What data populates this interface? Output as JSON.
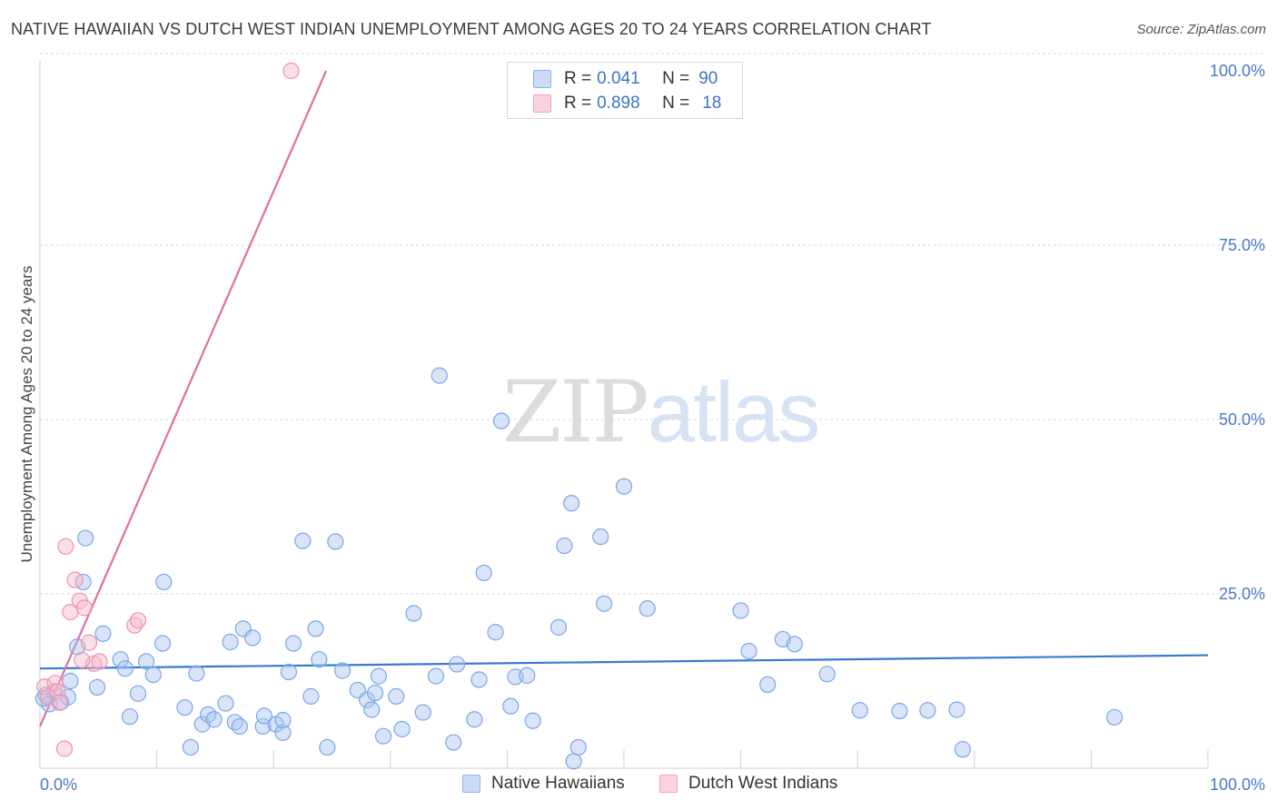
{
  "header": {
    "title": "NATIVE HAWAIIAN VS DUTCH WEST INDIAN UNEMPLOYMENT AMONG AGES 20 TO 24 YEARS CORRELATION CHART",
    "source": "Source: ZipAtlas.com"
  },
  "watermark": {
    "zip": "ZIP",
    "atlas": "atlas"
  },
  "legend": {
    "rows": [
      {
        "r_label": "R =",
        "r_value": "0.041",
        "n_label": "N =",
        "n_value": "90",
        "color": "#a9c6f2"
      },
      {
        "r_label": "R =",
        "r_value": "0.898",
        "n_label": "N =",
        "n_value": "18",
        "color": "#f7b8cc"
      }
    ]
  },
  "bottom_legend": {
    "items": [
      {
        "label": "Native Hawaiians",
        "color": "#a9c6f2"
      },
      {
        "label": "Dutch West Indians",
        "color": "#f7b8cc"
      }
    ]
  },
  "chart_data": {
    "type": "scatter",
    "title": "NATIVE HAWAIIAN VS DUTCH WEST INDIAN UNEMPLOYMENT AMONG AGES 20 TO 24 YEARS CORRELATION CHART",
    "xlabel": "",
    "ylabel": "Unemployment Among Ages 20 to 24 years",
    "xlim": [
      0,
      100
    ],
    "ylim": [
      0,
      100
    ],
    "x_tick_labels": [
      "0.0%",
      "100.0%"
    ],
    "y_ticks": [
      25,
      50,
      75,
      100
    ],
    "y_tick_labels": [
      "25.0%",
      "50.0%",
      "75.0%",
      "100.0%"
    ],
    "grid": true,
    "series": [
      {
        "name": "Native Hawaiians",
        "color": "#7aa6e6",
        "fill": "#a9c6f2",
        "r": 0.041,
        "n": 90,
        "trend": {
          "x": [
            0,
            100
          ],
          "y": [
            14.3,
            16.2
          ],
          "color": "#3a78d4"
        },
        "points": [
          [
            0.5,
            10.5
          ],
          [
            0.8,
            9.2
          ],
          [
            1.2,
            11.0
          ],
          [
            1.8,
            9.5
          ],
          [
            2.4,
            10.2
          ],
          [
            2.6,
            12.5
          ],
          [
            3.2,
            17.4
          ],
          [
            3.9,
            33.0
          ],
          [
            3.7,
            26.7
          ],
          [
            5.4,
            19.3
          ],
          [
            4.9,
            11.6
          ],
          [
            7.7,
            7.4
          ],
          [
            6.9,
            15.6
          ],
          [
            7.3,
            14.3
          ],
          [
            8.4,
            10.7
          ],
          [
            9.1,
            15.3
          ],
          [
            9.7,
            13.4
          ],
          [
            10.5,
            17.9
          ],
          [
            10.6,
            26.7
          ],
          [
            12.4,
            8.7
          ],
          [
            12.9,
            3.0
          ],
          [
            13.4,
            13.6
          ],
          [
            13.9,
            6.3
          ],
          [
            14.4,
            7.7
          ],
          [
            14.9,
            7.0
          ],
          [
            15.9,
            9.3
          ],
          [
            16.3,
            18.1
          ],
          [
            16.7,
            6.6
          ],
          [
            17.1,
            6.0
          ],
          [
            17.4,
            20.0
          ],
          [
            18.2,
            18.7
          ],
          [
            19.1,
            6.0
          ],
          [
            19.2,
            7.5
          ],
          [
            20.2,
            6.3
          ],
          [
            20.8,
            5.1
          ],
          [
            20.8,
            6.9
          ],
          [
            21.3,
            13.8
          ],
          [
            21.7,
            17.9
          ],
          [
            22.5,
            32.6
          ],
          [
            23.2,
            10.3
          ],
          [
            23.6,
            20.0
          ],
          [
            23.9,
            15.6
          ],
          [
            24.6,
            3.0
          ],
          [
            25.3,
            32.5
          ],
          [
            25.9,
            14.0
          ],
          [
            27.2,
            11.2
          ],
          [
            28.0,
            9.8
          ],
          [
            28.4,
            8.4
          ],
          [
            28.7,
            10.8
          ],
          [
            29.0,
            13.2
          ],
          [
            29.4,
            4.6
          ],
          [
            30.5,
            10.3
          ],
          [
            31.0,
            5.6
          ],
          [
            32.0,
            22.2
          ],
          [
            32.8,
            8.0
          ],
          [
            33.9,
            13.2
          ],
          [
            34.2,
            56.3
          ],
          [
            35.4,
            3.7
          ],
          [
            35.7,
            14.9
          ],
          [
            37.2,
            7.0
          ],
          [
            37.6,
            12.7
          ],
          [
            38.0,
            28.0
          ],
          [
            39.0,
            19.5
          ],
          [
            39.5,
            49.8
          ],
          [
            40.3,
            8.9
          ],
          [
            40.7,
            13.1
          ],
          [
            41.7,
            13.3
          ],
          [
            42.2,
            6.8
          ],
          [
            44.4,
            20.2
          ],
          [
            44.9,
            31.9
          ],
          [
            45.5,
            38.0
          ],
          [
            45.7,
            1.0
          ],
          [
            46.1,
            3.0
          ],
          [
            48.0,
            33.2
          ],
          [
            48.3,
            23.6
          ],
          [
            50.0,
            40.4
          ],
          [
            52.0,
            22.9
          ],
          [
            60.0,
            22.6
          ],
          [
            60.7,
            16.8
          ],
          [
            62.3,
            12.0
          ],
          [
            63.6,
            18.5
          ],
          [
            64.6,
            17.8
          ],
          [
            67.4,
            13.5
          ],
          [
            70.2,
            8.3
          ],
          [
            73.6,
            8.2
          ],
          [
            76.0,
            8.3
          ],
          [
            78.5,
            8.4
          ],
          [
            79.0,
            2.7
          ],
          [
            92.0,
            7.3
          ],
          [
            0.3,
            10.0
          ]
        ]
      },
      {
        "name": "Dutch West Indians",
        "color": "#ee93b0",
        "fill": "#f7b8cc",
        "r": 0.898,
        "n": 18,
        "trend": {
          "x": [
            0,
            24.5
          ],
          "y": [
            6.0,
            100.0
          ],
          "color": "#e0709a"
        },
        "points": [
          [
            0.4,
            11.7
          ],
          [
            0.7,
            10.2
          ],
          [
            1.3,
            12.2
          ],
          [
            1.5,
            11.0
          ],
          [
            1.7,
            9.4
          ],
          [
            2.1,
            2.8
          ],
          [
            2.2,
            31.8
          ],
          [
            2.6,
            22.4
          ],
          [
            3.0,
            27.0
          ],
          [
            3.4,
            24.0
          ],
          [
            3.8,
            23.0
          ],
          [
            4.2,
            18.0
          ],
          [
            4.6,
            15.0
          ],
          [
            5.1,
            15.3
          ],
          [
            8.1,
            20.5
          ],
          [
            8.4,
            21.2
          ],
          [
            3.6,
            15.5
          ],
          [
            21.5,
            100.0
          ]
        ]
      }
    ]
  }
}
